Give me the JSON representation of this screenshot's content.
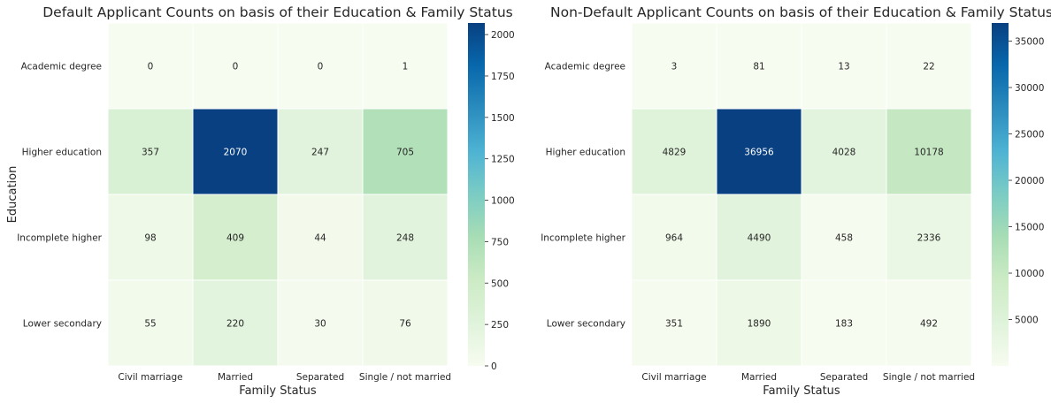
{
  "chart_data": [
    {
      "type": "heatmap",
      "title": "Default Applicant Counts on basis of their Education & Family Status",
      "xlabel": "Family Status",
      "ylabel": "Education",
      "x_categories": [
        "Civil marriage",
        "Married",
        "Separated",
        "Single / not married"
      ],
      "y_categories": [
        "Academic degree",
        "Higher education",
        "Incomplete higher",
        "Lower secondary"
      ],
      "values": [
        [
          0,
          0,
          0,
          1
        ],
        [
          357,
          2070,
          247,
          705
        ],
        [
          98,
          409,
          44,
          248
        ],
        [
          55,
          220,
          30,
          76
        ]
      ],
      "colormap": "GnBu",
      "colorbar": {
        "min": 0,
        "max": 2070,
        "ticks": [
          0,
          250,
          500,
          750,
          1000,
          1250,
          1500,
          1750,
          2000
        ]
      }
    },
    {
      "type": "heatmap",
      "title": "Non-Default Applicant Counts on basis of their Education & Family Status",
      "xlabel": "Family Status",
      "ylabel": "",
      "x_categories": [
        "Civil marriage",
        "Married",
        "Separated",
        "Single / not married"
      ],
      "y_categories": [
        "Academic degree",
        "Higher education",
        "Incomplete higher",
        "Lower secondary"
      ],
      "values": [
        [
          3,
          81,
          13,
          22
        ],
        [
          4829,
          36956,
          4028,
          10178
        ],
        [
          964,
          4490,
          458,
          2336
        ],
        [
          351,
          1890,
          183,
          492
        ]
      ],
      "colormap": "GnBu",
      "colorbar": {
        "min": 3,
        "max": 36956,
        "ticks": [
          5000,
          10000,
          15000,
          20000,
          25000,
          30000,
          35000
        ]
      }
    }
  ],
  "colors": {
    "cmap_stops": [
      "#f7fcf0",
      "#e0f3db",
      "#ccebc5",
      "#a8ddb5",
      "#7bccc4",
      "#4eb3d3",
      "#2b8cbe",
      "#0868ac",
      "#084081"
    ],
    "text_dark": "#262626",
    "text_light": "#ffffff",
    "cell_border": "#ffffff"
  }
}
